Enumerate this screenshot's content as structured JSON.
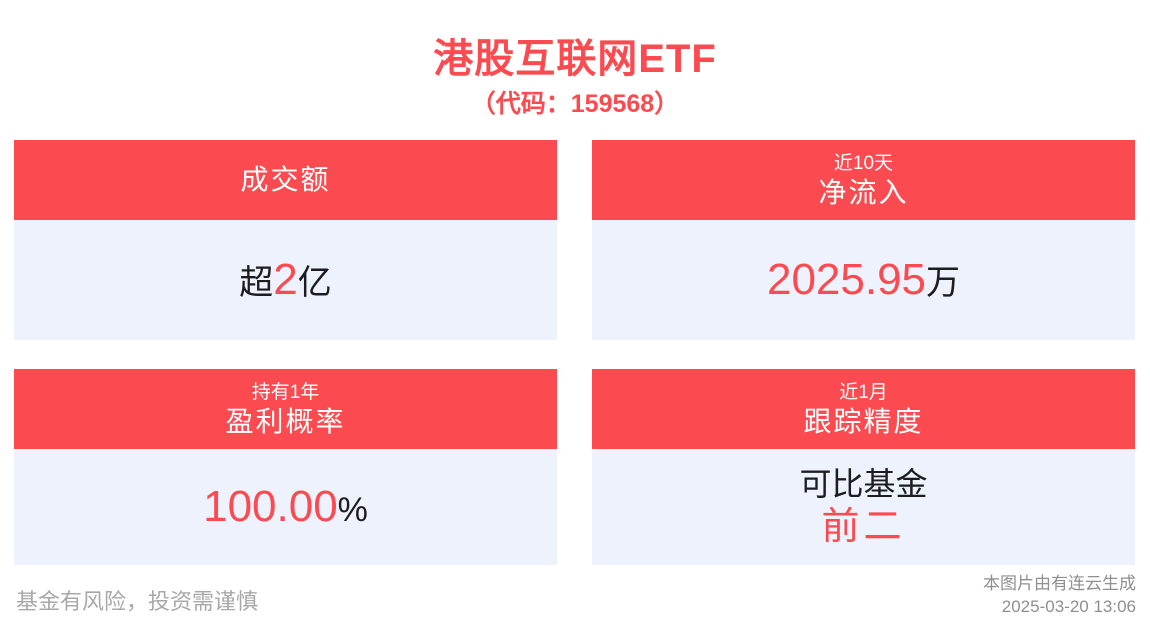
{
  "header": {
    "title": "港股互联网ETF",
    "subtitle": "（代码：159568）"
  },
  "cards": {
    "turnover": {
      "header_main": "成交额",
      "value_prefix": "超",
      "value_highlight": "2",
      "value_suffix": "亿"
    },
    "net_inflow": {
      "header_small": "近10天",
      "header_main": "净流入",
      "value_highlight": "2025.95",
      "value_suffix": "万"
    },
    "profit_probability": {
      "header_small": "持有1年",
      "header_main": "盈利概率",
      "value_highlight": "100.00",
      "value_suffix": "%"
    },
    "tracking_accuracy": {
      "header_small": "近1月",
      "header_main": "跟踪精度",
      "value_line1": "可比基金",
      "value_highlight": "前二"
    }
  },
  "footer": {
    "disclaimer": "基金有风险，投资需谨慎",
    "credit": "本图片由有连云生成",
    "timestamp": "2025-03-20 13:06"
  },
  "colors": {
    "accent_red": "#fc4b50",
    "card_body_bg": "#edf2fd",
    "dark_text": "#1d1d1f",
    "muted_gray": "#a8a8a8"
  }
}
